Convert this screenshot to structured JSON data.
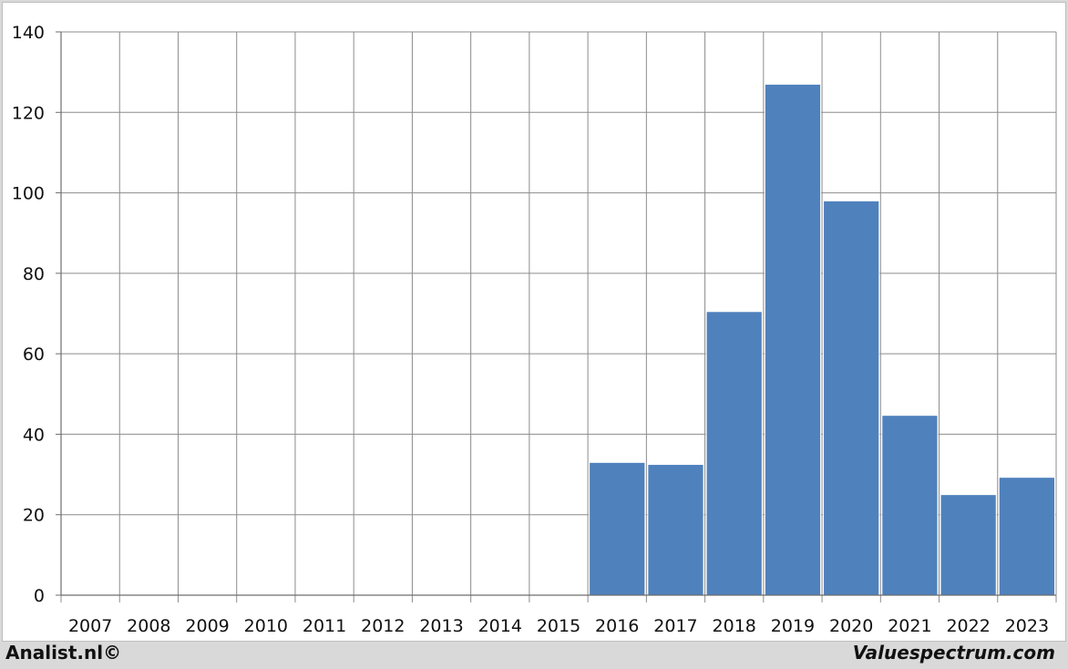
{
  "footer": {
    "left_text": "Analist.nl©",
    "right_text": "Valuespectrum.com"
  },
  "colors": {
    "bar": "#4f81bd",
    "grid": "#8c8c8c",
    "background": "#ffffff"
  },
  "chart_data": {
    "type": "bar",
    "title": "",
    "xlabel": "",
    "ylabel": "",
    "categories": [
      "2007",
      "2008",
      "2009",
      "2010",
      "2011",
      "2012",
      "2013",
      "2014",
      "2015",
      "2016",
      "2017",
      "2018",
      "2019",
      "2020",
      "2021",
      "2022",
      "2023"
    ],
    "values": [
      null,
      null,
      null,
      null,
      null,
      null,
      null,
      null,
      null,
      33,
      32.5,
      70.5,
      127,
      98,
      44.7,
      25,
      29.3
    ],
    "ylim": [
      0,
      140
    ],
    "yticks": [
      0,
      20,
      40,
      60,
      80,
      100,
      120,
      140
    ],
    "grid": true,
    "legend": "none"
  }
}
